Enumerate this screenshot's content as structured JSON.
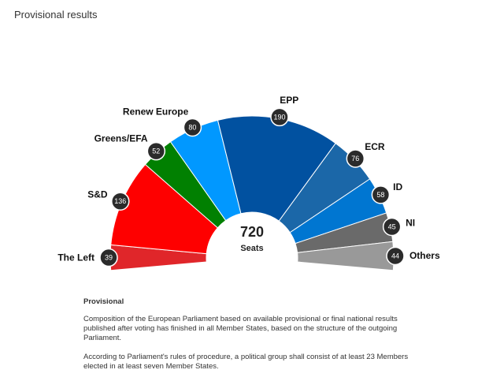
{
  "page": {
    "title": "Provisional results"
  },
  "chart_data": {
    "type": "pie",
    "subtype": "parliament-hemicycle",
    "total": 720,
    "total_label": "Seats",
    "groups": [
      {
        "name": "The Left",
        "seats": 39,
        "color": "#e0262a",
        "label_side": "left"
      },
      {
        "name": "S&D",
        "seats": 136,
        "color": "#fe0000",
        "label_side": "left"
      },
      {
        "name": "Greens/EFA",
        "seats": 52,
        "color": "#018001",
        "label_side": "left"
      },
      {
        "name": "Renew Europe",
        "seats": 80,
        "color": "#0198ff",
        "label_side": "left"
      },
      {
        "name": "EPP",
        "seats": 190,
        "color": "#0151a0",
        "label_side": "right"
      },
      {
        "name": "ECR",
        "seats": 76,
        "color": "#1b67a8",
        "label_side": "right"
      },
      {
        "name": "ID",
        "seats": 58,
        "color": "#0076d1",
        "label_side": "right"
      },
      {
        "name": "NI",
        "seats": 45,
        "color": "#6a6a6a",
        "label_side": "right"
      },
      {
        "name": "Others",
        "seats": 44,
        "color": "#999999",
        "label_side": "right"
      }
    ]
  },
  "notes": {
    "title": "Provisional",
    "paragraphs": [
      "Composition of the European Parliament based on available provisional or final national results published after voting has finished in all Member States, based on the structure of the outgoing Parliament.",
      "According to Parliament's rules of procedure, a political group shall consist of at least 23 Members elected in at least seven Member States."
    ]
  }
}
